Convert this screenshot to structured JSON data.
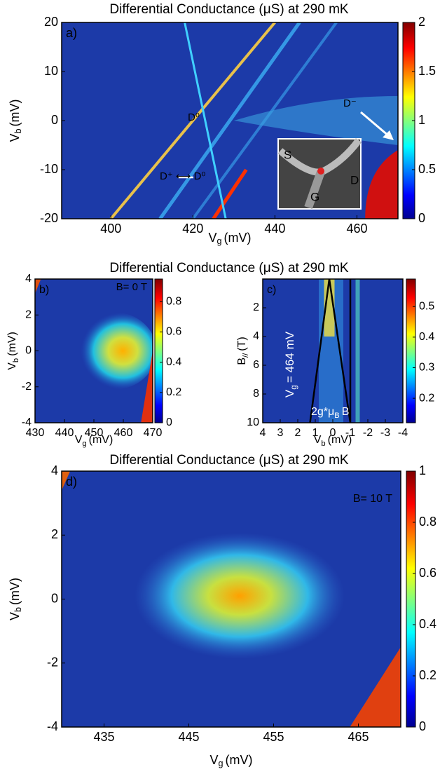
{
  "chart_data": [
    {
      "type": "heatmap",
      "title": "Differential Conductance (μS) at 290 mK",
      "panel_label": "a)",
      "xlabel": [
        "V",
        "g",
        "(mV)"
      ],
      "ylabel": [
        "V",
        "b",
        "(mV)"
      ],
      "xlim": [
        388,
        470
      ],
      "xticks": [
        400,
        420,
        440,
        460
      ],
      "ylim": [
        -20,
        20
      ],
      "yticks": [
        -20,
        -10,
        0,
        10,
        20
      ],
      "clim": [
        0,
        2
      ],
      "cticks": [
        0,
        0.5,
        1,
        1.5,
        2
      ],
      "colormap": "jet",
      "annotations": [
        "D⁰",
        "D⁺ ⟷ D⁰",
        "D⁻",
        "S",
        "G",
        "D"
      ]
    },
    {
      "type": "heatmap",
      "title": "Differential Conductance (μS) at 290 mK",
      "panel_label": "b)",
      "xlabel": [
        "V",
        "g",
        "(mV)"
      ],
      "ylabel": [
        "V",
        "b",
        "(mV)"
      ],
      "xlim": [
        430,
        470
      ],
      "xticks": [
        430,
        440,
        450,
        460,
        470
      ],
      "ylim": [
        -4,
        4
      ],
      "yticks": [
        -4,
        -2,
        0,
        2,
        4
      ],
      "clim": [
        0,
        0.95
      ],
      "cticks": [
        0,
        0.2,
        0.4,
        0.6,
        0.8
      ],
      "colormap": "jet",
      "annotations": [
        "B= 0 T"
      ]
    },
    {
      "type": "heatmap",
      "panel_label": "c)",
      "xlabel": [
        "V",
        "b",
        "(mV)"
      ],
      "ylabel": [
        "B",
        "//",
        "(T)"
      ],
      "xlim": [
        4,
        -4
      ],
      "xticks": [
        4,
        3,
        2,
        1,
        0,
        -1,
        -2,
        -3,
        -4
      ],
      "ylim": [
        10,
        0
      ],
      "yticks": [
        2,
        4,
        6,
        8,
        10
      ],
      "clim": [
        0.12,
        0.59
      ],
      "cticks": [
        0.2,
        0.3,
        0.4,
        0.5
      ],
      "colormap": "jet",
      "annotations": [
        [
          "V",
          "g",
          "= 464 mV"
        ],
        [
          "2g*μ",
          "B",
          "B"
        ]
      ]
    },
    {
      "type": "heatmap",
      "title": "Differential Conductance (μS) at 290 mK",
      "panel_label": "d)",
      "xlabel": [
        "V",
        "g",
        "(mV)"
      ],
      "ylabel": [
        "V",
        "b",
        "(mV)"
      ],
      "xlim": [
        430,
        470
      ],
      "xticks": [
        435,
        445,
        455,
        465
      ],
      "ylim": [
        -4,
        4
      ],
      "yticks": [
        -4,
        -2,
        0,
        2,
        4
      ],
      "clim": [
        0,
        1
      ],
      "cticks": [
        0,
        0.2,
        0.4,
        0.6,
        0.8,
        1
      ],
      "colormap": "jet",
      "annotations": [
        "B= 10 T"
      ]
    }
  ]
}
